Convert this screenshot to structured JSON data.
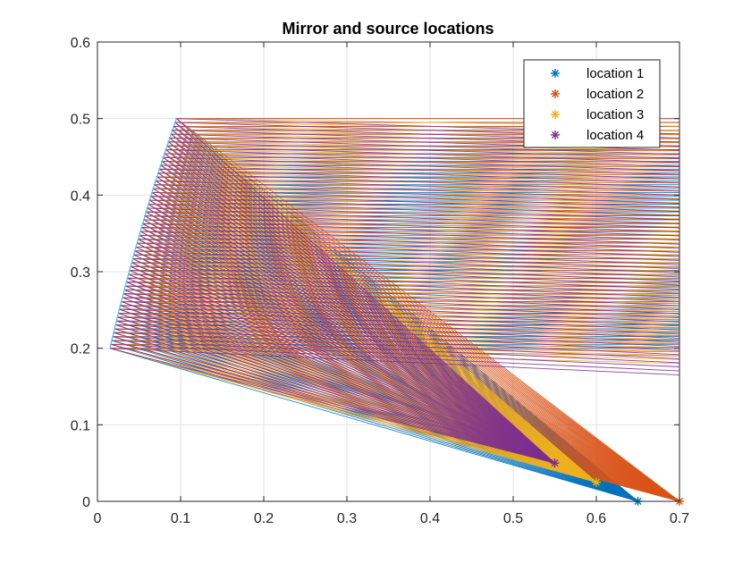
{
  "chart_data": {
    "type": "line",
    "title": "Mirror and source locations",
    "xlabel": "",
    "ylabel": "",
    "xlim": [
      0,
      0.7
    ],
    "ylim": [
      0,
      0.6
    ],
    "x_ticks": [
      0,
      0.1,
      0.2,
      0.3,
      0.4,
      0.5,
      0.6,
      0.7
    ],
    "y_ticks": [
      0,
      0.1,
      0.2,
      0.3,
      0.4,
      0.5,
      0.6
    ],
    "x_tick_labels": [
      "0",
      "0.1",
      "0.2",
      "0.3",
      "0.4",
      "0.5",
      "0.6",
      "0.7"
    ],
    "y_tick_labels": [
      "0",
      "0.1",
      "0.2",
      "0.3",
      "0.4",
      "0.5",
      "0.6"
    ],
    "grid": true,
    "legend_position": "top-right",
    "mirror": {
      "description_points": [
        [
          0.015,
          0.2
        ],
        [
          0.04,
          0.28
        ],
        [
          0.065,
          0.38
        ],
        [
          0.095,
          0.5
        ]
      ],
      "x_range": [
        0.015,
        0.095
      ],
      "y_range": [
        0.2,
        0.5
      ],
      "ray_count": 60,
      "ray_exit_x": 0.7
    },
    "series": [
      {
        "name": "location 1",
        "marker": "*",
        "source": [
          0.65,
          0.0
        ],
        "color": "#0072BD",
        "exit_y_top": 0.5,
        "exit_y_bottom": 0.2
      },
      {
        "name": "location 2",
        "marker": "*",
        "source": [
          0.7,
          0.0
        ],
        "color": "#D95319",
        "exit_y_top": 0.5,
        "exit_y_bottom": 0.19
      },
      {
        "name": "location 3",
        "marker": "*",
        "source": [
          0.6,
          0.025
        ],
        "color": "#EDB120",
        "exit_y_top": 0.49,
        "exit_y_bottom": 0.18
      },
      {
        "name": "location 4",
        "marker": "*",
        "source": [
          0.55,
          0.05
        ],
        "color": "#7E2F8E",
        "exit_y_top": 0.48,
        "exit_y_bottom": 0.165
      }
    ]
  }
}
